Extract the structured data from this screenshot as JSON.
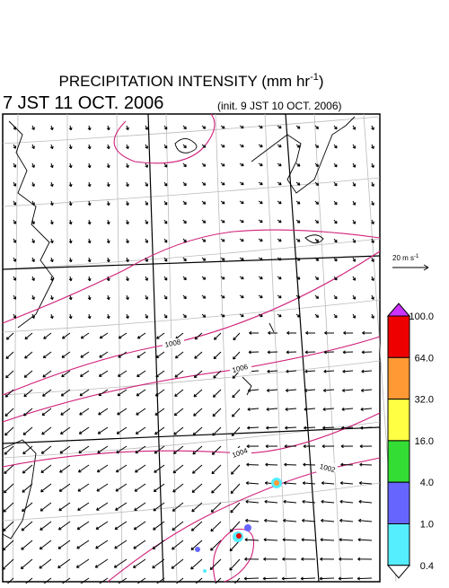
{
  "header": {
    "title": "PRECIPITATION INTENSITY (mm hr",
    "title_superscript": "-1",
    "title_close": ")",
    "valid_time": "7 JST 11 OCT. 2006",
    "init_time": "(init. 9 JST 10 OCT. 2006)"
  },
  "wind_scale": {
    "label": "20 m s",
    "superscript": "-1"
  },
  "isobars": [
    {
      "label": "1008"
    },
    {
      "label": "1006"
    },
    {
      "label": "1004"
    },
    {
      "label": "1002"
    }
  ],
  "colorbar": {
    "labels": [
      "100.0",
      "64.0",
      "32.0",
      "16.0",
      "4.0",
      "1.0",
      "0.4"
    ],
    "colors": [
      "#cc33ff",
      "#ee0000",
      "#ff9933",
      "#ffff44",
      "#33dd33",
      "#6666ff",
      "#55eeff",
      "#ffffff"
    ]
  }
}
